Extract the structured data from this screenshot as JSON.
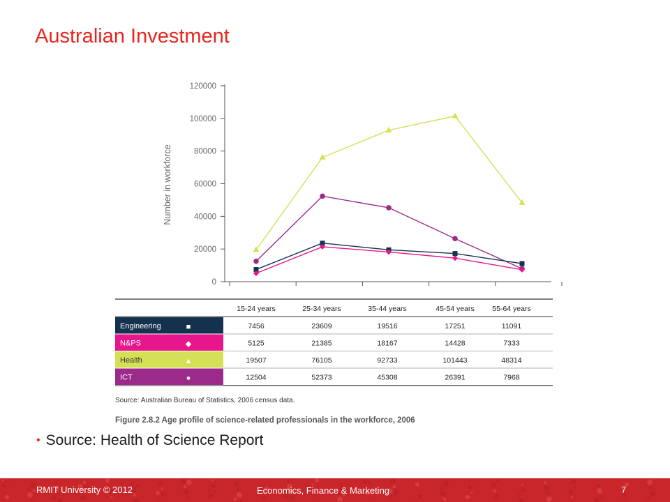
{
  "slide": {
    "title": "Australian Investment",
    "bullet": "Source: Health of Science Report"
  },
  "footer": {
    "left": "RMIT University © 2012",
    "center": "Economics, Finance & Marketing",
    "page": "7"
  },
  "colors": {
    "title": "#e8261e",
    "footer": "#c8262b",
    "engineering": "#14324e",
    "nps": "#e8168c",
    "health": "#d4e157",
    "ict": "#9c2a8a"
  },
  "chart_data": {
    "type": "line",
    "title": "",
    "xlabel": "",
    "ylabel": "Number in workforce",
    "ylim": [
      0,
      120000
    ],
    "yticks": [
      "0",
      "20000",
      "40000",
      "60000",
      "80000",
      "100000",
      "120000"
    ],
    "categories": [
      "15-24 years",
      "25-34 years",
      "35-44 years",
      "45-54 years",
      "55-64 years"
    ],
    "grid": false,
    "series": [
      {
        "name": "Engineering",
        "marker": "square",
        "values": [
          7456,
          23609,
          19516,
          17251,
          11091
        ]
      },
      {
        "name": "N&PS",
        "marker": "diamond",
        "values": [
          5125,
          21385,
          18167,
          14428,
          7333
        ]
      },
      {
        "name": "Health",
        "marker": "triangle",
        "values": [
          19507,
          76105,
          92733,
          101443,
          48314
        ]
      },
      {
        "name": "ICT",
        "marker": "circle",
        "values": [
          12504,
          52373,
          45308,
          26391,
          7968
        ]
      }
    ],
    "table": {
      "header": [
        "15-24 years",
        "25-34 years",
        "35-44 years",
        "45-54 years",
        "55-64 years"
      ],
      "rows": [
        {
          "label": "Engineering",
          "symbol": "■",
          "values": [
            "7456",
            "23609",
            "19516",
            "17251",
            "11091"
          ]
        },
        {
          "label": "N&PS",
          "symbol": "◆",
          "values": [
            "5125",
            "21385",
            "18167",
            "14428",
            "7333"
          ]
        },
        {
          "label": "Health",
          "symbol": "▲",
          "values": [
            "19507",
            "76105",
            "92733",
            "101443",
            "48314"
          ]
        },
        {
          "label": "ICT",
          "symbol": "●",
          "values": [
            "12504",
            "52373",
            "45308",
            "26391",
            "7968"
          ]
        }
      ]
    },
    "source": "Source: Australian Bureau of Statistics, 2006 census data.",
    "caption": "Figure 2.8.2  Age profile of science-related professionals in the workforce, 2006"
  }
}
